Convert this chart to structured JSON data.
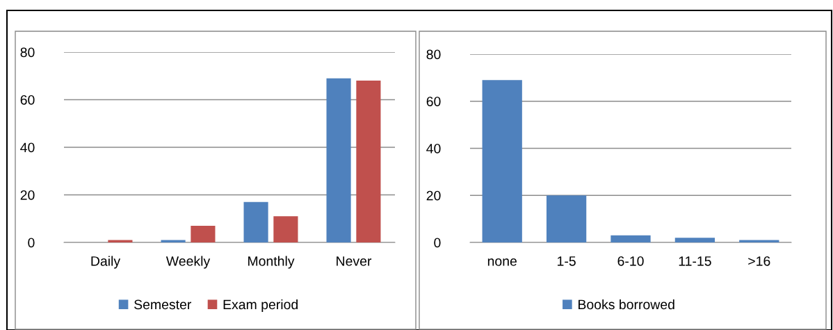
{
  "chart_data": [
    {
      "type": "bar",
      "categories": [
        "Daily",
        "Weekly",
        "Monthly",
        "Never"
      ],
      "series": [
        {
          "name": "Semester",
          "color": "#4f81bd",
          "values": [
            0,
            1,
            17,
            69
          ]
        },
        {
          "name": "Exam period",
          "color": "#c0504d",
          "values": [
            1,
            7,
            11,
            68
          ]
        }
      ],
      "ylim": [
        0,
        80
      ],
      "yticks": [
        0,
        20,
        40,
        60,
        80
      ],
      "grid": "y",
      "legend": "bottom"
    },
    {
      "type": "bar",
      "categories": [
        "none",
        "1-5",
        "6-10",
        "11-15",
        ">16"
      ],
      "series": [
        {
          "name": "Books borrowed",
          "color": "#4f81bd",
          "values": [
            69,
            20,
            3,
            2,
            1
          ]
        }
      ],
      "ylim": [
        0,
        80
      ],
      "yticks": [
        0,
        20,
        40,
        60,
        80
      ],
      "grid": "y",
      "legend": "bottom"
    }
  ]
}
